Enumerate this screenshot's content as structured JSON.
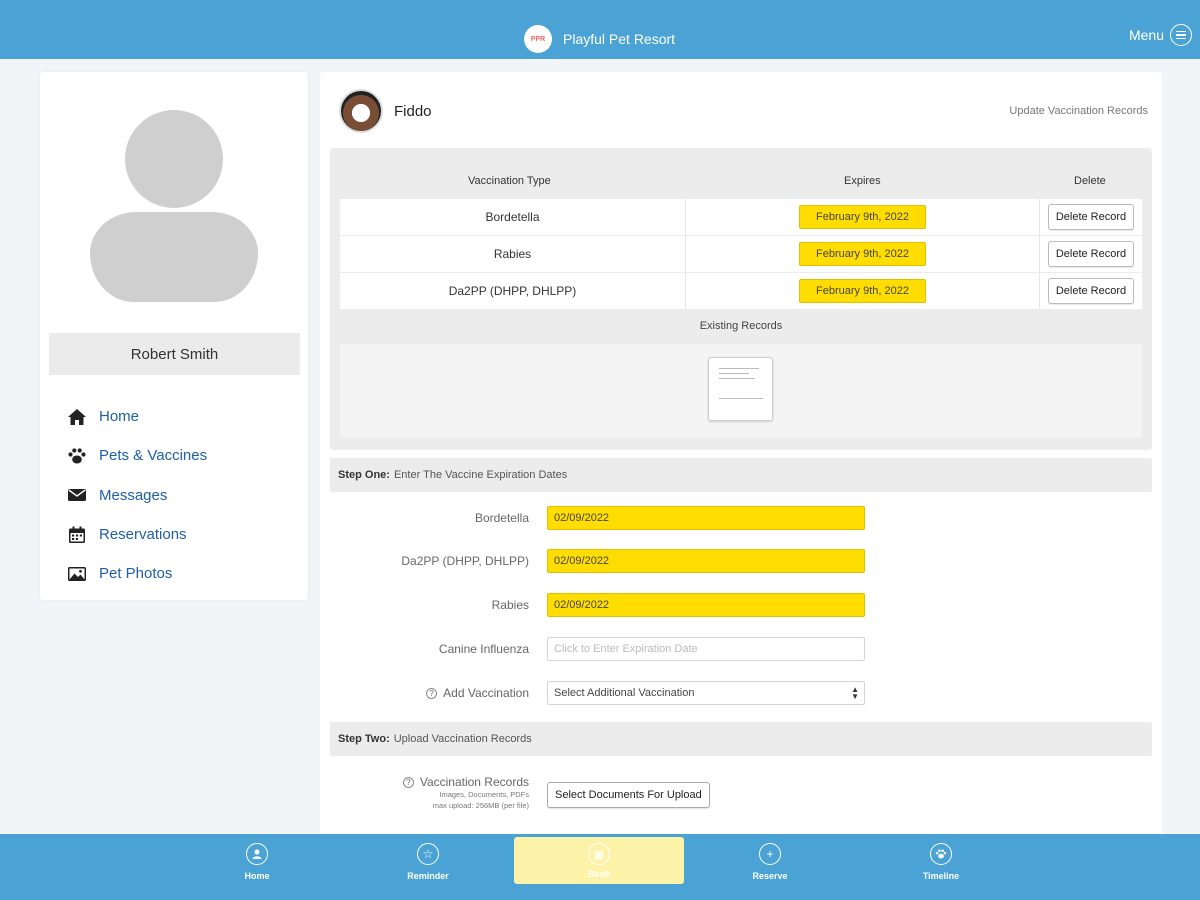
{
  "app": {
    "logo_text": "PPR",
    "title": "Playful Pet Resort",
    "menu_label": "Menu"
  },
  "user": {
    "name": "Robert Smith"
  },
  "nav": [
    {
      "label": "Home",
      "icon": "home-icon"
    },
    {
      "label": "Pets & Vaccines",
      "icon": "paw-icon"
    },
    {
      "label": "Messages",
      "icon": "envelope-icon"
    },
    {
      "label": "Reservations",
      "icon": "calendar-icon"
    },
    {
      "label": "Pet Photos",
      "icon": "photo-icon"
    }
  ],
  "pet": {
    "name": "Fiddo",
    "update_link": "Update Vaccination Records"
  },
  "records": {
    "headers": {
      "type": "Vaccination Type",
      "expires": "Expires",
      "delete": "Delete"
    },
    "rows": [
      {
        "type": "Bordetella",
        "expires": "February 9th, 2022",
        "delete_label": "Delete Record"
      },
      {
        "type": "Rabies",
        "expires": "February 9th, 2022",
        "delete_label": "Delete Record"
      },
      {
        "type": "Da2PP (DHPP, DHLPP)",
        "expires": "February 9th, 2022",
        "delete_label": "Delete Record"
      }
    ],
    "existing_title": "Existing Records"
  },
  "step_one": {
    "title": "Step One:",
    "text": "Enter The Vaccine Expiration Dates",
    "fields": [
      {
        "label": "Bordetella",
        "value": "02/09/2022"
      },
      {
        "label": "Da2PP (DHPP, DHLPP)",
        "value": "02/09/2022"
      },
      {
        "label": "Rabies",
        "value": "02/09/2022"
      },
      {
        "label": "Canine Influenza",
        "value": "",
        "placeholder": "Click to Enter Expiration Date"
      }
    ],
    "add_label": "Add Vaccination",
    "add_select": "Select Additional Vaccination"
  },
  "step_two": {
    "title": "Step Two:",
    "text": "Upload Vaccination Records",
    "label": "Vaccination Records",
    "sub1": "Images, Documents, PDFs",
    "sub2": "max upload: 256MB (per file)",
    "button": "Select Documents For Upload"
  },
  "tabs": [
    {
      "label": "Home",
      "icon": "user-circle-icon"
    },
    {
      "label": "Reminder",
      "icon": "star-icon"
    },
    {
      "label": "Book",
      "icon": "calendar-circle-icon",
      "active": true
    },
    {
      "label": "Reserve",
      "icon": "plus-circle-icon"
    },
    {
      "label": "Timeline",
      "icon": "paw-circle-icon"
    }
  ],
  "colors": {
    "header": "#4aa3d4",
    "highlight": "#ffdd00",
    "link": "#1f5fa8",
    "active_tab": "#fdf3a8"
  }
}
